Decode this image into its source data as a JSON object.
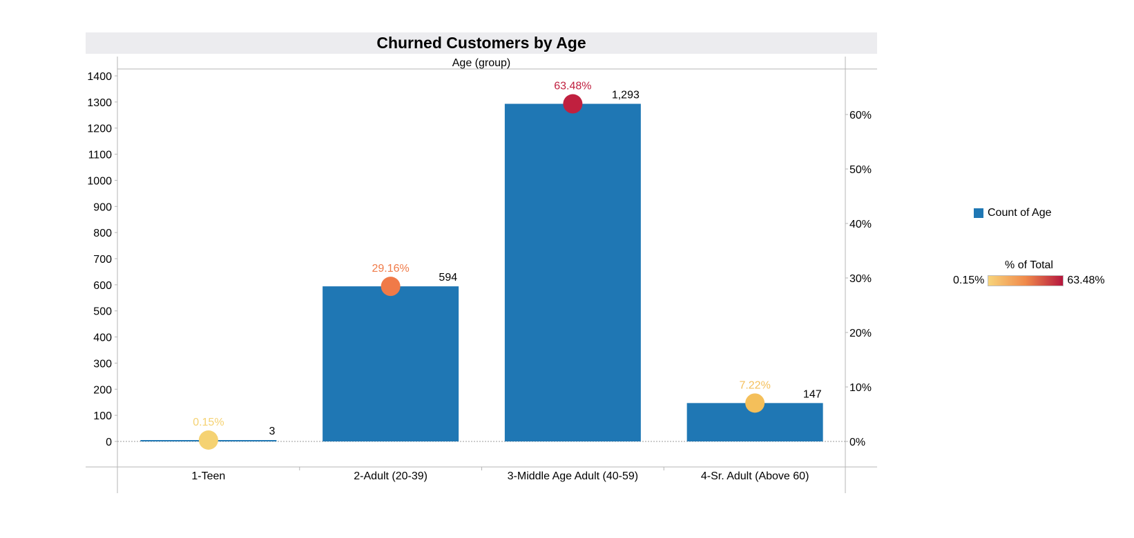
{
  "chart_data": {
    "type": "bar",
    "title": "Churned Customers by Age",
    "column_header": "Age (group)",
    "categories": [
      "1-Teen",
      "2-Adult (20-39)",
      "3-Middle Age Adult (40-59)",
      "4-Sr. Adult (Above 60)"
    ],
    "series": [
      {
        "name": "Count of Age",
        "values": [
          3,
          594,
          1293,
          147
        ],
        "value_labels": [
          "3",
          "594",
          "1,293",
          "147"
        ],
        "color": "#1f77b4"
      }
    ],
    "overlay": {
      "type": "scatter",
      "name": "% of Total",
      "values": [
        0.15,
        29.16,
        63.48,
        7.22
      ],
      "value_labels": [
        "0.15%",
        "29.16%",
        "63.48%",
        "7.22%"
      ],
      "colors": [
        "#f5d272",
        "#f07a48",
        "#c0203f",
        "#f4bf5a"
      ]
    },
    "y_left": {
      "ticks": [
        0,
        100,
        200,
        300,
        400,
        500,
        600,
        700,
        800,
        900,
        1000,
        1100,
        1200,
        1300,
        1400
      ],
      "tick_labels": [
        "0",
        "100",
        "200",
        "300",
        "400",
        "500",
        "600",
        "700",
        "800",
        "900",
        "1000",
        "1100",
        "1200",
        "1300",
        "1400"
      ],
      "ylim": [
        0,
        1400
      ]
    },
    "y_right": {
      "ticks": [
        0,
        10,
        20,
        30,
        40,
        50,
        60
      ],
      "tick_labels": [
        "0%",
        "10%",
        "20%",
        "30%",
        "40%",
        "50%",
        "60%"
      ],
      "ylim": [
        0,
        60
      ]
    },
    "legend": {
      "placement": "right",
      "series_label": "Count of Age",
      "gradient_title": "% of Total",
      "gradient_min_label": "0.15%",
      "gradient_max_label": "63.48%",
      "gradient_colors": [
        "#f7d37a",
        "#f08a4b",
        "#b5173e"
      ]
    },
    "grid": false
  }
}
